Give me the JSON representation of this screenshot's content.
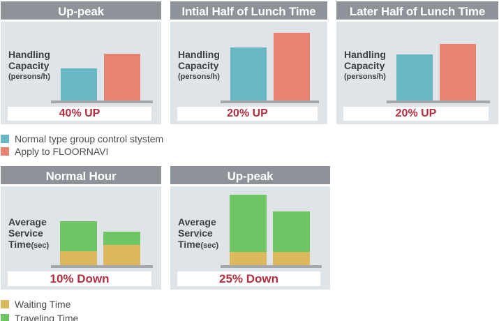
{
  "styles": {
    "header_bg": "#8d9399",
    "header_text": "#ffffff",
    "panel_bg": "#dfe4e8",
    "baseline_color": "#a4a8ab",
    "annotation_color": "#b22f3f",
    "label_color": "#3d4043",
    "legend_text_color": "#4a4d50",
    "normal_bar_color": "#69b7c5",
    "floornavi_bar_color": "#e88371",
    "waiting_color": "#dcb85f",
    "traveling_color": "#6fc463"
  },
  "legend_capacity": {
    "items": [
      {
        "label": "Normal type group control stystem",
        "color": "#69b7c5"
      },
      {
        "label": "Apply to FLOORNAVI",
        "color": "#e88371"
      }
    ]
  },
  "legend_time": {
    "items": [
      {
        "label": "Waiting Time",
        "color": "#dcb85f"
      },
      {
        "label": "Traveling Time",
        "color": "#6fc463"
      }
    ]
  },
  "chart_data": [
    {
      "type": "bar",
      "title": "Up-peak",
      "ylabel": "Handling Capacity (persons/h)",
      "label_lines": [
        "Handling",
        "Capacity"
      ],
      "label_unit": "(persons/h)",
      "categories": [
        "Normal type group control stystem",
        "Apply to FLOORNAVI"
      ],
      "values": [
        46,
        67
      ],
      "unit": "relative bar height (no numeric axis shown)",
      "bar_colors": [
        "#69b7c5",
        "#e88371"
      ],
      "annotation": "40% UP",
      "legend_position": "below-left"
    },
    {
      "type": "bar",
      "title": "Intial Half of Lunch Time",
      "ylabel": "Handling Capacity (persons/h)",
      "label_lines": [
        "Handling",
        "Capacity"
      ],
      "label_unit": "(persons/h)",
      "categories": [
        "Normal type group control stystem",
        "Apply to FLOORNAVI"
      ],
      "values": [
        76,
        97
      ],
      "unit": "relative bar height (no numeric axis shown)",
      "bar_colors": [
        "#69b7c5",
        "#e88371"
      ],
      "annotation": "20% UP",
      "legend_position": "below-left"
    },
    {
      "type": "bar",
      "title": "Later Half of Lunch Time",
      "ylabel": "Handling Capacity (persons/h)",
      "label_lines": [
        "Handling",
        "Capacity"
      ],
      "label_unit": "(persons/h)",
      "categories": [
        "Normal type group control stystem",
        "Apply to FLOORNAVI"
      ],
      "values": [
        66,
        81
      ],
      "unit": "relative bar height (no numeric axis shown)",
      "bar_colors": [
        "#69b7c5",
        "#e88371"
      ],
      "annotation": "20% UP",
      "legend_position": "below-left"
    },
    {
      "type": "bar",
      "stacked": true,
      "title": "Normal Hour",
      "ylabel": "Average Service Time(sec)",
      "label_lines": [
        "Average",
        "Service"
      ],
      "label_last": "Time",
      "label_unit": "(sec)",
      "categories": [
        "Normal type group control stystem",
        "Apply to FLOORNAVI"
      ],
      "series": [
        {
          "name": "Waiting Time",
          "color": "#dcb85f",
          "values": [
            20,
            29
          ]
        },
        {
          "name": "Traveling Time",
          "color": "#6fc463",
          "values": [
            43,
            19
          ]
        }
      ],
      "unit": "relative bar height (no numeric axis shown)",
      "annotation": "10% Down",
      "legend_position": "below-left"
    },
    {
      "type": "bar",
      "stacked": true,
      "title": "Up-peak",
      "ylabel": "Average Service Time(sec)",
      "label_lines": [
        "Average",
        "Service"
      ],
      "label_last": "Time",
      "label_unit": "(sec)",
      "categories": [
        "Normal type group control stystem",
        "Apply to FLOORNAVI"
      ],
      "series": [
        {
          "name": "Waiting Time",
          "color": "#dcb85f",
          "values": [
            19,
            19
          ]
        },
        {
          "name": "Traveling Time",
          "color": "#6fc463",
          "values": [
            82,
            58
          ]
        }
      ],
      "unit": "relative bar height (no numeric axis shown)",
      "annotation": "25% Down",
      "legend_position": "below-left"
    }
  ]
}
